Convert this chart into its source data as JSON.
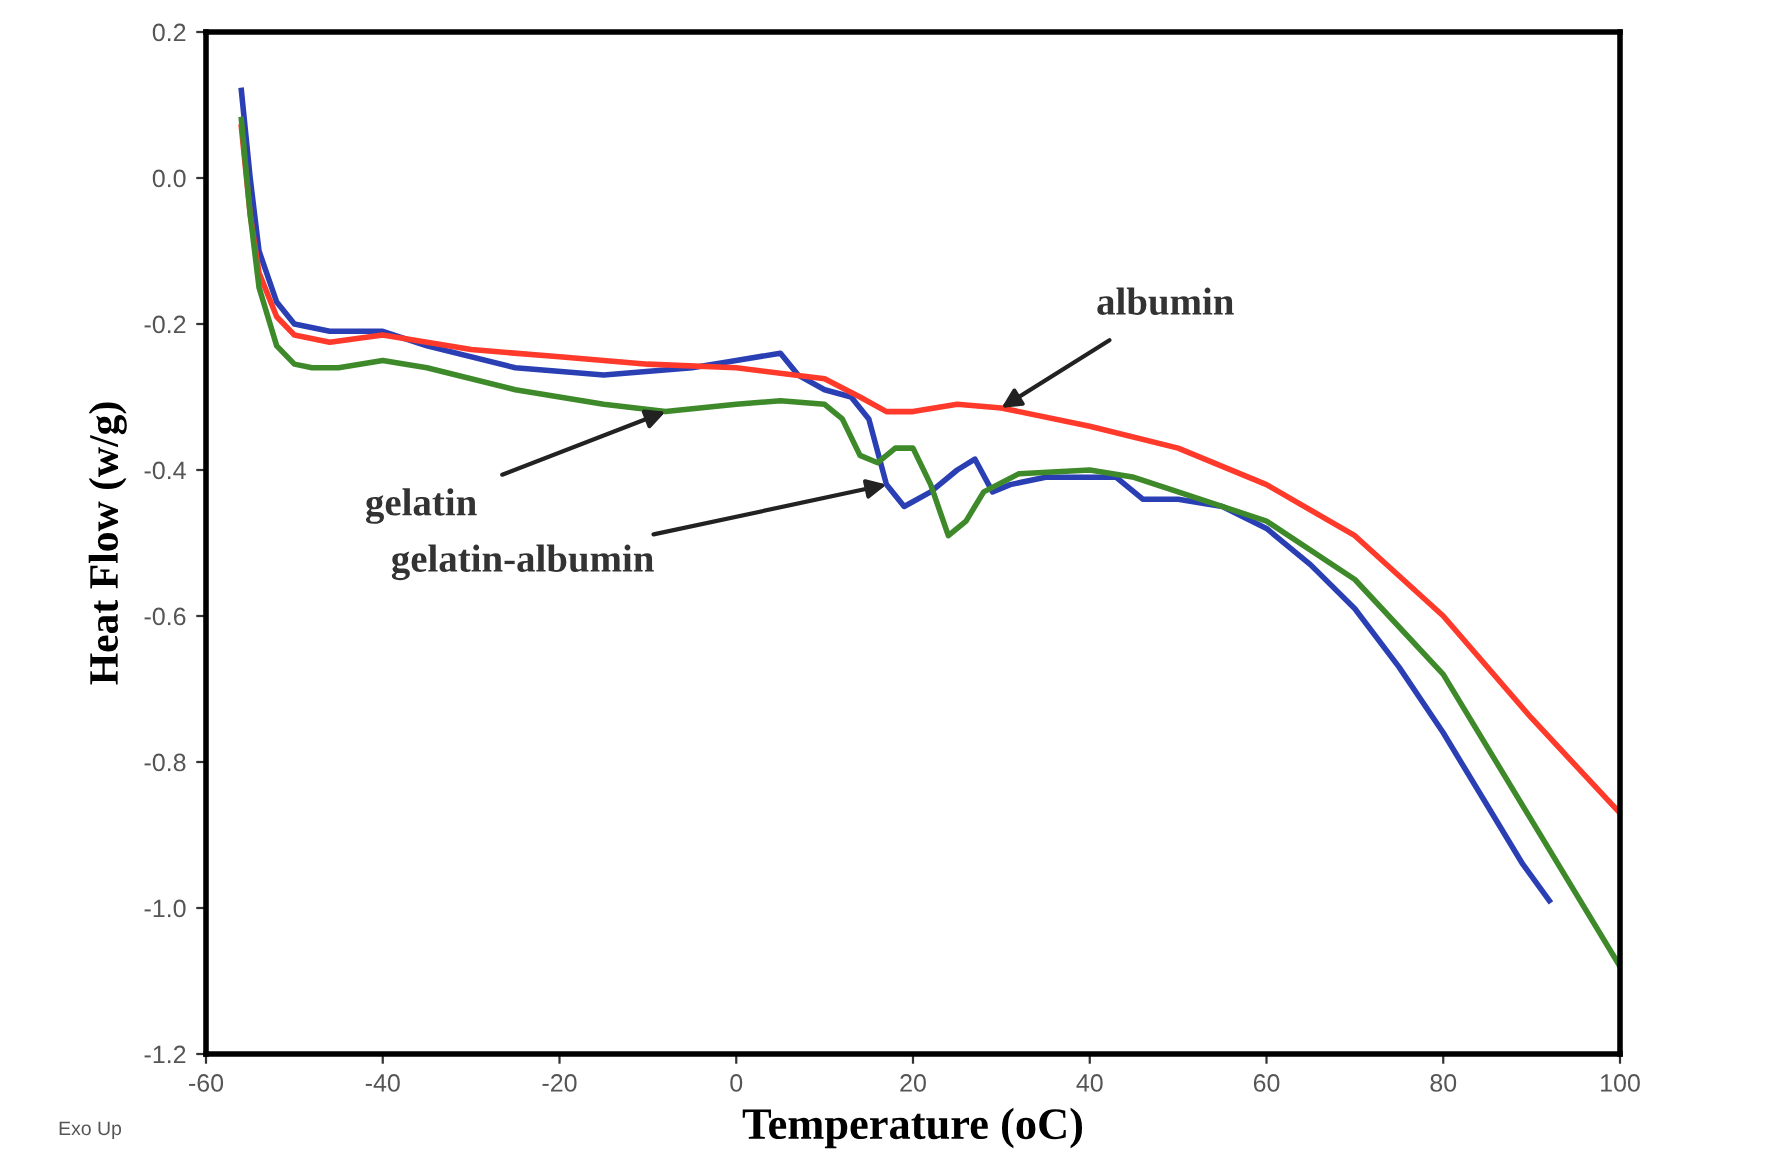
{
  "chart_data": {
    "type": "line",
    "xlabel": "Temperature (oC)",
    "ylabel": "Heat Flow (w/g)",
    "xlim": [
      -60,
      100
    ],
    "xticks": [
      -60,
      -40,
      -20,
      0,
      20,
      40,
      60,
      80,
      100
    ],
    "ylim": [
      -1.2,
      0.2
    ],
    "yticks": [
      {
        "value": -1.2,
        "label": "-1.2"
      },
      {
        "value": -1.0,
        "label": "-1.0"
      },
      {
        "value": -0.8,
        "label": "-0.8"
      },
      {
        "value": -0.6,
        "label": "-0.6"
      },
      {
        "value": -0.4,
        "label": "-0.4"
      },
      {
        "value": -0.2,
        "label": "-0.2"
      },
      {
        "value": 0.0,
        "label": "0.0"
      },
      {
        "value": 0.2,
        "label": "0.2"
      }
    ],
    "grid": false,
    "marker": "none",
    "line_style": "solid",
    "series": [
      {
        "color": "#2b3fb5",
        "x": [
          -56,
          -55,
          -54,
          -52,
          -50,
          -46,
          -40,
          -35,
          -25,
          -15,
          -5,
          0,
          5,
          7,
          10,
          13,
          15,
          17,
          19,
          22,
          25,
          27,
          29,
          31,
          35,
          40,
          43,
          46,
          50,
          55,
          60,
          65,
          70,
          75,
          80,
          85,
          89,
          92
        ],
        "values": [
          0.12,
          0.0,
          -0.1,
          -0.17,
          -0.2,
          -0.21,
          -0.21,
          -0.23,
          -0.26,
          -0.27,
          -0.26,
          -0.25,
          -0.24,
          -0.27,
          -0.29,
          -0.3,
          -0.33,
          -0.42,
          -0.45,
          -0.43,
          -0.4,
          -0.385,
          -0.43,
          -0.42,
          -0.41,
          -0.41,
          -0.41,
          -0.44,
          -0.44,
          -0.45,
          -0.48,
          -0.53,
          -0.59,
          -0.67,
          -0.76,
          -0.86,
          -0.94,
          -0.99
        ]
      },
      {
        "color": "#ff3a2a",
        "x": [
          -56,
          -55,
          -54,
          -52,
          -50,
          -46,
          -40,
          -30,
          -20,
          -10,
          0,
          10,
          14,
          17,
          20,
          25,
          30,
          40,
          50,
          60,
          70,
          80,
          90,
          100
        ],
        "values": [
          0.07,
          -0.05,
          -0.13,
          -0.19,
          -0.215,
          -0.225,
          -0.215,
          -0.235,
          -0.245,
          -0.255,
          -0.26,
          -0.275,
          -0.3,
          -0.32,
          -0.32,
          -0.31,
          -0.315,
          -0.34,
          -0.37,
          -0.42,
          -0.49,
          -0.6,
          -0.74,
          -0.87
        ]
      },
      {
        "color": "#3e8a2a",
        "x": [
          -56,
          -55,
          -54,
          -52,
          -50,
          -48,
          -45,
          -40,
          -35,
          -25,
          -15,
          -8,
          0,
          5,
          10,
          12,
          14,
          16,
          18,
          20,
          22,
          24,
          26,
          28,
          32,
          40,
          45,
          50,
          60,
          70,
          80,
          90,
          100
        ],
        "values": [
          0.08,
          -0.05,
          -0.15,
          -0.23,
          -0.255,
          -0.26,
          -0.26,
          -0.25,
          -0.26,
          -0.29,
          -0.31,
          -0.32,
          -0.31,
          -0.305,
          -0.31,
          -0.33,
          -0.38,
          -0.39,
          -0.37,
          -0.37,
          -0.42,
          -0.49,
          -0.47,
          -0.43,
          -0.405,
          -0.4,
          -0.41,
          -0.43,
          -0.47,
          -0.55,
          -0.68,
          -0.88,
          -1.08
        ]
      }
    ],
    "annotations": [
      {
        "text": "albumin",
        "x": 30,
        "y": -0.315
      },
      {
        "text": "gelatin",
        "x": -8,
        "y": -0.32
      },
      {
        "text": "gelatin-albumin",
        "x": 17,
        "y": -0.42
      },
      "Exo Up"
    ]
  }
}
